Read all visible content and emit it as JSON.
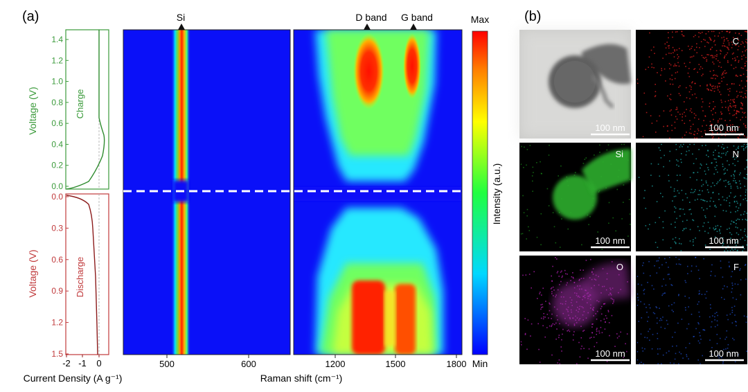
{
  "panel_a": {
    "label": "(a)",
    "left_plots": {
      "charge": {
        "ylabel": "Voltage (V)",
        "annotation": "Charge",
        "color": "#3a9a3a",
        "yticks": [
          "1.4",
          "1.2",
          "1.0",
          "0.8",
          "0.6",
          "0.4",
          "0.2",
          "0.0"
        ]
      },
      "discharge": {
        "ylabel": "Voltage (V)",
        "annotation": "Discharge",
        "color": "#c0393b",
        "yticks": [
          "0.0",
          "0.3",
          "0.6",
          "0.9",
          "1.2",
          "1.5"
        ]
      },
      "xticks": [
        "-2",
        "-1",
        "0"
      ],
      "xlabel": "Current Density (A g⁻¹)"
    },
    "heatmap_left": {
      "xticks": [
        "500",
        "600"
      ],
      "peak_label": "Si"
    },
    "heatmap_right": {
      "xticks": [
        "1200",
        "1500",
        "1800"
      ],
      "peak_labels": [
        "D band",
        "G band"
      ]
    },
    "xlabel": "Raman shift (cm⁻¹)",
    "colorbar": {
      "max_label": "Max",
      "min_label": "Min",
      "label": "Intensity (a.u.)"
    }
  },
  "panel_b": {
    "label": "(b)",
    "images": [
      {
        "element": "",
        "scale": "100 nm",
        "kind": "TEM"
      },
      {
        "element": "C",
        "scale": "100 nm",
        "kind": "map",
        "color": "#e02020"
      },
      {
        "element": "Si",
        "scale": "100 nm",
        "kind": "map",
        "color": "#22c022"
      },
      {
        "element": "N",
        "scale": "100 nm",
        "kind": "map",
        "color": "#20b0b0"
      },
      {
        "element": "O",
        "scale": "100 nm",
        "kind": "map",
        "color": "#c020c0"
      },
      {
        "element": "F",
        "scale": "100 nm",
        "kind": "map",
        "color": "#2050d0"
      }
    ]
  },
  "chart_data": {
    "type": "heatmap",
    "title": "",
    "xlabel": "Raman shift (cm⁻¹)",
    "ylabel": "Voltage (V)",
    "x_ticks": [
      500,
      600,
      1200,
      1500,
      1800
    ],
    "peaks": [
      {
        "label": "Si",
        "position": 520
      },
      {
        "label": "D band",
        "position": 1350
      },
      {
        "label": "G band",
        "position": 1590
      }
    ],
    "charge_voltage_range": [
      0.0,
      1.5
    ],
    "discharge_voltage_range": [
      0.0,
      1.5
    ],
    "colorbar": [
      "Min",
      "Max"
    ]
  }
}
